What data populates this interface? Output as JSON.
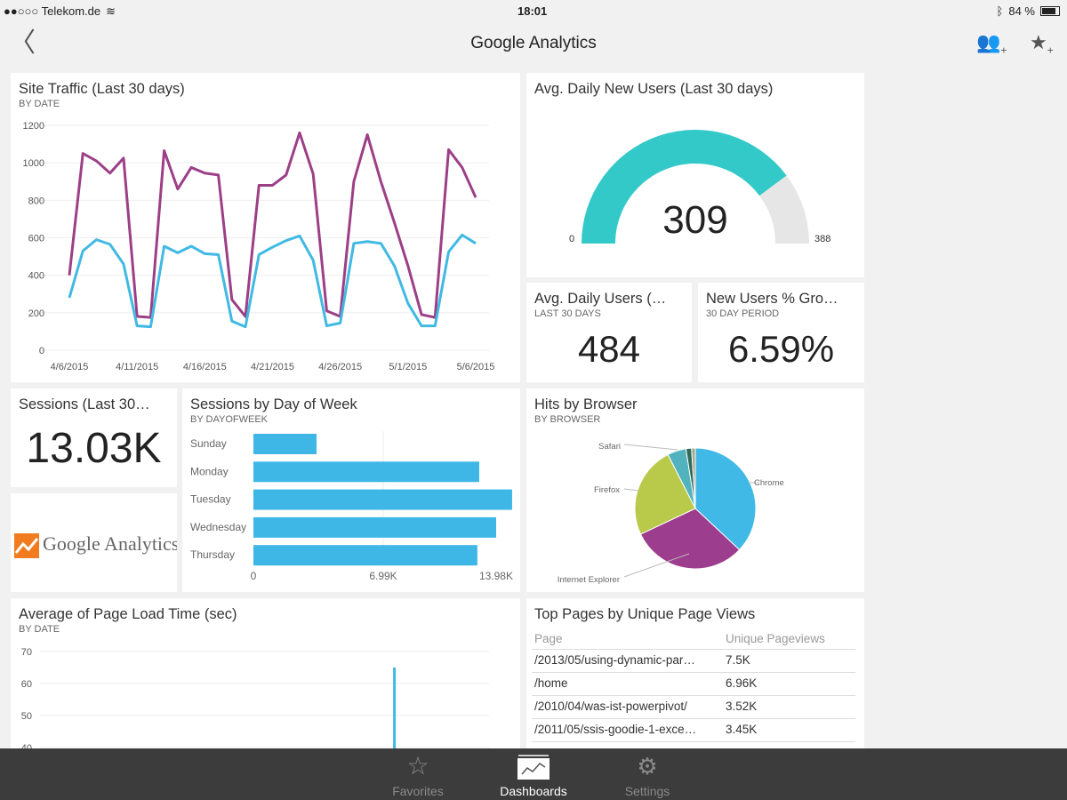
{
  "status_bar": {
    "carrier": "●●○○○ Telekom.de",
    "time": "18:01",
    "battery": "84 %"
  },
  "header": {
    "title": "Google Analytics",
    "back_icon": "chevron-left-icon",
    "share_icon": "add-user-icon",
    "favorite_icon": "star-add-icon"
  },
  "colors": {
    "purple": "#9c3f87",
    "cyan": "#40b9e3",
    "gauge": "#33c9c9",
    "gauge_bg": "#e6e6e6",
    "bar": "#3fb7e6"
  },
  "site_traffic": {
    "title": "Site Traffic (Last 30 days)",
    "subtitle": "BY DATE"
  },
  "gauge": {
    "title": "Avg. Daily New Users (Last 30 days)",
    "value": "309",
    "min": "0",
    "max": "388",
    "fraction": 0.796
  },
  "avg_users": {
    "title": "Avg. Daily Users (…",
    "subtitle": "LAST 30 DAYS",
    "value": "484"
  },
  "new_users": {
    "title": "New Users % Gro…",
    "subtitle": "30 DAY PERIOD",
    "value": "6.59%"
  },
  "sessions": {
    "title": "Sessions (Last 30…",
    "value": "13.03K"
  },
  "logo": {
    "text": "Google Analytics"
  },
  "sessions_dow": {
    "title": "Sessions by Day of Week",
    "subtitle": "BY DAYOFWEEK"
  },
  "browser": {
    "title": "Hits by Browser",
    "subtitle": "BY BROWSER"
  },
  "page_load": {
    "title": "Average of Page Load Time (sec)",
    "subtitle": "BY DATE"
  },
  "top_pages": {
    "title": "Top Pages by Unique Page Views",
    "headers": [
      "Page",
      "Unique Pageviews"
    ],
    "rows": [
      [
        "/2013/05/using-dynamic-par…",
        "7.5K"
      ],
      [
        "/home",
        "6.96K"
      ],
      [
        "/2010/04/was-ist-powerpivot/",
        "3.52K"
      ],
      [
        "/2011/05/ssis-goodie-1-exce…",
        "3.45K"
      ]
    ]
  },
  "tabs": [
    {
      "label": "Favorites",
      "icon": "star-icon"
    },
    {
      "label": "Dashboards",
      "icon": "dashboard-icon",
      "active": true
    },
    {
      "label": "Settings",
      "icon": "gear-icon"
    }
  ],
  "chart_data": [
    {
      "type": "line",
      "ylim": [
        0,
        1200
      ],
      "yticks": [
        "0",
        "200",
        "400",
        "600",
        "800",
        "1000",
        "1200"
      ],
      "xticks": [
        "4/6/2015",
        "4/11/2015",
        "4/16/2015",
        "4/21/2015",
        "4/26/2015",
        "5/1/2015",
        "5/6/2015"
      ],
      "x_start": "4/6/2015",
      "x_end": "5/6/2015",
      "grid": true,
      "series": [
        {
          "color": "#9c3f87",
          "values": [
            400,
            1050,
            1010,
            945,
            1025,
            180,
            175,
            1065,
            860,
            975,
            945,
            935,
            270,
            180,
            880,
            880,
            935,
            1160,
            940,
            210,
            180,
            900,
            1150,
            900,
            680,
            450,
            190,
            175,
            1070,
            975,
            815
          ]
        },
        {
          "color": "#40b9e3",
          "values": [
            280,
            530,
            590,
            565,
            460,
            130,
            125,
            555,
            520,
            555,
            515,
            510,
            155,
            125,
            510,
            550,
            585,
            610,
            480,
            130,
            145,
            570,
            580,
            570,
            450,
            250,
            130,
            130,
            525,
            615,
            570
          ]
        }
      ]
    },
    {
      "type": "bar",
      "orientation": "horizontal",
      "categories": [
        "Sunday",
        "Monday",
        "Tuesday",
        "Wednesday",
        "Thursday"
      ],
      "values": [
        3400,
        12160,
        13930,
        13070,
        12060
      ],
      "xlim": [
        0,
        13980
      ],
      "xticks": [
        "0",
        "6.99K",
        "13.98K"
      ]
    },
    {
      "type": "pie",
      "labels": [
        "Chrome",
        "Internet Explorer",
        "Firefox",
        "Safari",
        "",
        ""
      ],
      "values": [
        37,
        31,
        24.5,
        5,
        1.5,
        1
      ],
      "colors": [
        "#40b9e6",
        "#9d3d8e",
        "#b9c94a",
        "#52b3bf",
        "#2f6b5a",
        "#a7a58a"
      ]
    },
    {
      "type": "line",
      "yticks": [
        "40",
        "50",
        "60",
        "70"
      ],
      "ylim": [
        40,
        70
      ],
      "x_start": "4/6/2015",
      "x_end": "5/6/2015",
      "spike": {
        "date": "4/30/2015",
        "value": 65
      }
    }
  ]
}
